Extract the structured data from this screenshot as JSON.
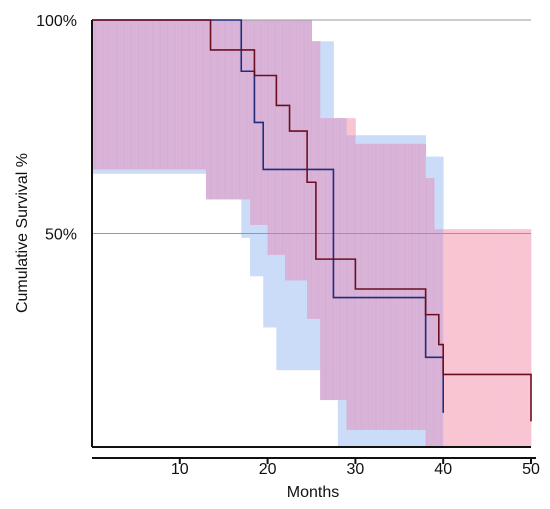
{
  "chart_data": {
    "type": "line",
    "title": "",
    "xlabel": "Months",
    "ylabel": "Cumulative Survival %",
    "xlim": [
      0,
      50
    ],
    "ylim": [
      0,
      100
    ],
    "x_ticks": [
      10,
      20,
      30,
      40,
      50
    ],
    "y_tick_labels": [
      {
        "value": 100,
        "label": "100%"
      },
      {
        "value": 50,
        "label": "50%"
      }
    ],
    "grid": "horizontal at 50% and 100%",
    "colors": {
      "blue_band": "#cadcf8",
      "pink_band": "#f9c5d3",
      "overlap_band": "#d6aed6",
      "blue_line": "#1f2d7a",
      "red_line": "#6b0f1f",
      "axis": "#111111",
      "gridline": "#999999"
    },
    "series": [
      {
        "color_key": "blue",
        "curve": [
          [
            0,
            100
          ],
          [
            17,
            100
          ],
          [
            17,
            88
          ],
          [
            18.5,
            88
          ],
          [
            18.5,
            76
          ],
          [
            19.5,
            76
          ],
          [
            19.5,
            65
          ],
          [
            27.5,
            65
          ],
          [
            27.5,
            35
          ],
          [
            38,
            35
          ],
          [
            38,
            21
          ],
          [
            40,
            21
          ],
          [
            40,
            8
          ]
        ],
        "ci_upper": [
          [
            0,
            100
          ],
          [
            25,
            100
          ],
          [
            25,
            95
          ],
          [
            27.5,
            95
          ],
          [
            27.5,
            77
          ],
          [
            29,
            77
          ],
          [
            29,
            73
          ],
          [
            38,
            73
          ],
          [
            38,
            68
          ],
          [
            40,
            68
          ],
          [
            40,
            0
          ]
        ],
        "ci_lower": [
          [
            0,
            64
          ],
          [
            13,
            64
          ],
          [
            13,
            58
          ],
          [
            17,
            58
          ],
          [
            17,
            49
          ],
          [
            18,
            49
          ],
          [
            18,
            40
          ],
          [
            19.5,
            40
          ],
          [
            19.5,
            28
          ],
          [
            21,
            28
          ],
          [
            21,
            18
          ],
          [
            26,
            18
          ],
          [
            26,
            11
          ],
          [
            28,
            11
          ],
          [
            28,
            0
          ],
          [
            40,
            0
          ]
        ]
      },
      {
        "color_key": "red",
        "curve": [
          [
            0,
            100
          ],
          [
            13.5,
            100
          ],
          [
            13.5,
            93
          ],
          [
            18.5,
            93
          ],
          [
            18.5,
            87
          ],
          [
            21,
            87
          ],
          [
            21,
            80
          ],
          [
            22.5,
            80
          ],
          [
            22.5,
            74
          ],
          [
            24.5,
            74
          ],
          [
            24.5,
            62
          ],
          [
            25.5,
            62
          ],
          [
            25.5,
            44
          ],
          [
            30,
            44
          ],
          [
            30,
            37
          ],
          [
            38,
            37
          ],
          [
            38,
            31
          ],
          [
            39.5,
            31
          ],
          [
            39.5,
            24
          ],
          [
            40,
            24
          ],
          [
            40,
            17
          ],
          [
            50,
            17
          ],
          [
            50,
            6
          ]
        ],
        "ci_upper": [
          [
            0,
            100
          ],
          [
            25,
            100
          ],
          [
            25,
            95
          ],
          [
            26,
            95
          ],
          [
            26,
            77
          ],
          [
            30,
            77
          ],
          [
            30,
            71
          ],
          [
            38,
            71
          ],
          [
            38,
            63
          ],
          [
            39,
            63
          ],
          [
            39,
            51
          ],
          [
            50,
            51
          ]
        ],
        "ci_lower": [
          [
            0,
            65
          ],
          [
            13,
            65
          ],
          [
            13,
            58
          ],
          [
            18,
            58
          ],
          [
            18,
            52
          ],
          [
            20,
            52
          ],
          [
            20,
            45
          ],
          [
            22,
            45
          ],
          [
            22,
            39
          ],
          [
            24.5,
            39
          ],
          [
            24.5,
            30
          ],
          [
            26,
            30
          ],
          [
            26,
            11
          ],
          [
            29,
            11
          ],
          [
            29,
            4
          ],
          [
            38,
            4
          ],
          [
            38,
            0
          ],
          [
            50,
            0
          ]
        ]
      }
    ]
  }
}
